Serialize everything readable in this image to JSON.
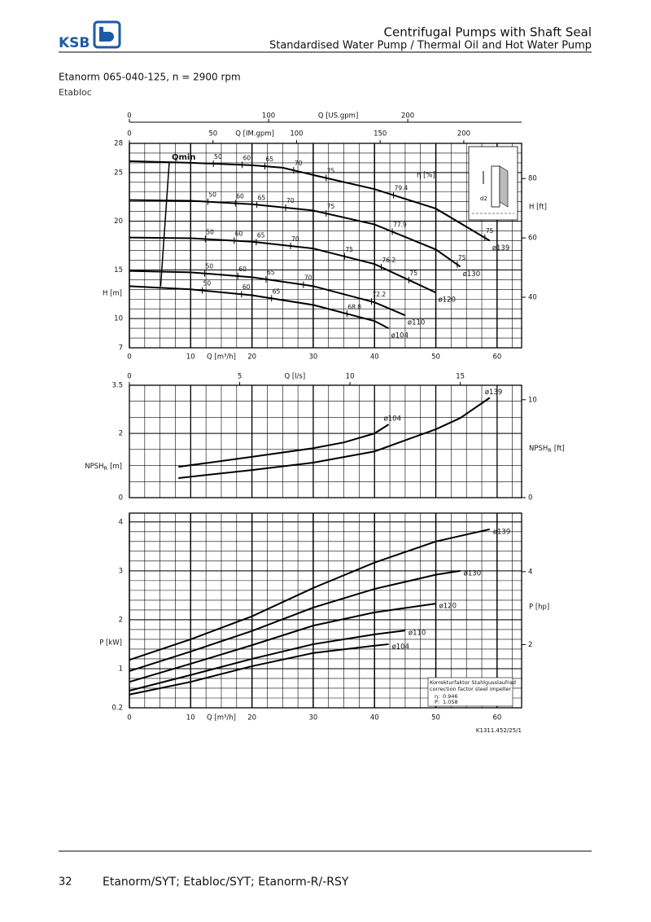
{
  "header": {
    "logo": "KSB",
    "title": "Centrifugal Pumps with Shaft Seal",
    "subtitle": "Standardised Water Pump / Thermal Oil and Hot Water Pump"
  },
  "product": {
    "name": "Etanorm 065-040-125, n = 2900 rpm",
    "variant": "Etabloc"
  },
  "chart_data": [
    {
      "type": "line",
      "xlim": [
        0,
        64
      ],
      "xticks": [
        0,
        10,
        20,
        30,
        40,
        50,
        60
      ],
      "x_label": "Q [m³/h]",
      "ylim": [
        7,
        28
      ],
      "yticks": [
        7,
        10,
        15,
        20,
        25,
        28
      ],
      "y_label": "H [m]",
      "y2lim": [
        22.97,
        91.86
      ],
      "y2ticks": [
        40,
        60,
        80
      ],
      "y2_label": "H [ft]",
      "top_axes": [
        {
          "label": "Q [US.gpm]",
          "lim": [
            0,
            281.8
          ],
          "ticks": [
            0,
            100,
            200
          ]
        },
        {
          "label": "Q [IM.gpm]",
          "lim": [
            0,
            234.6
          ],
          "ticks": [
            0,
            50,
            100,
            150,
            200
          ]
        }
      ],
      "efficiency_label": "η [%]",
      "qmin": {
        "label": "Qmin",
        "x": [
          6.5,
          5.1
        ],
        "values": [
          26,
          13.3
        ]
      },
      "inset_label": "d2",
      "series": [
        {
          "name": "ø139",
          "color": "#000000",
          "x": [
            0,
            10,
            20,
            25,
            30,
            40,
            50,
            58.8
          ],
          "values": [
            26.17,
            26.0,
            25.75,
            25.5,
            24.75,
            23.3,
            21.3,
            18.0
          ],
          "eta_points": [
            {
              "x": 13.7,
              "eta": 50
            },
            {
              "x": 18.4,
              "eta": 60
            },
            {
              "x": 22.1,
              "eta": 65
            },
            {
              "x": 26.8,
              "eta": 70
            },
            {
              "x": 32.1,
              "eta": 75
            },
            {
              "x": 43.1,
              "eta": 79.4
            },
            {
              "x": 58.0,
              "eta": 75
            }
          ]
        },
        {
          "name": "ø130",
          "color": "#000000",
          "x": [
            0,
            10,
            20,
            30,
            40,
            50,
            54
          ],
          "values": [
            22.17,
            22.1,
            21.75,
            21.1,
            19.67,
            17.1,
            15.33
          ],
          "eta_points": [
            {
              "x": 12.8,
              "eta": 50
            },
            {
              "x": 17.3,
              "eta": 60
            },
            {
              "x": 20.8,
              "eta": 65
            },
            {
              "x": 25.5,
              "eta": 70
            },
            {
              "x": 32.1,
              "eta": 75
            },
            {
              "x": 42.9,
              "eta": 77.9
            },
            {
              "x": 53.5,
              "eta": 75
            }
          ]
        },
        {
          "name": "ø120",
          "color": "#000000",
          "x": [
            0,
            10,
            20,
            30,
            40,
            50
          ],
          "values": [
            18.33,
            18.25,
            17.9,
            17.2,
            15.6,
            12.67
          ],
          "eta_points": [
            {
              "x": 12.4,
              "eta": 50
            },
            {
              "x": 17.1,
              "eta": 60
            },
            {
              "x": 20.7,
              "eta": 65
            },
            {
              "x": 26.3,
              "eta": 70
            },
            {
              "x": 35.1,
              "eta": 75
            },
            {
              "x": 41.1,
              "eta": 76.2
            },
            {
              "x": 45.6,
              "eta": 75
            }
          ]
        },
        {
          "name": "ø110",
          "color": "#000000",
          "x": [
            0,
            10,
            20,
            30,
            40,
            45
          ],
          "values": [
            14.9,
            14.75,
            14.25,
            13.33,
            11.67,
            10.33
          ],
          "eta_points": [
            {
              "x": 12.3,
              "eta": 50
            },
            {
              "x": 17.7,
              "eta": 60
            },
            {
              "x": 22.3,
              "eta": 65
            },
            {
              "x": 28.4,
              "eta": 70
            },
            {
              "x": 39.5,
              "eta": 72.2
            }
          ]
        },
        {
          "name": "ø104",
          "color": "#000000",
          "x": [
            0,
            10,
            20,
            30,
            40,
            42.3
          ],
          "values": [
            13.33,
            13.0,
            12.4,
            11.4,
            9.75,
            9.0
          ],
          "eta_points": [
            {
              "x": 11.9,
              "eta": 50
            },
            {
              "x": 18.3,
              "eta": 60
            },
            {
              "x": 23.2,
              "eta": 65
            },
            {
              "x": 35.5,
              "eta": 68.8
            }
          ]
        }
      ]
    },
    {
      "type": "line",
      "xlim": [
        0,
        64
      ],
      "ylim": [
        0,
        3.5
      ],
      "yticks": [
        0,
        2,
        3.5
      ],
      "y_label": {
        "text": "NPSH",
        "sub": "R",
        "unit": "[m]"
      },
      "y2lim": [
        0,
        11.48
      ],
      "y2ticks": [
        0,
        10
      ],
      "y2_label": {
        "text": "NPSH",
        "sub": "R",
        "unit": "[ft]"
      },
      "top_axes": [
        {
          "label": "Q [l/s]",
          "lim": [
            0,
            17.78
          ],
          "ticks": [
            0,
            5,
            10,
            15
          ]
        }
      ],
      "series": [
        {
          "name": "ø104",
          "color": "#000000",
          "x": [
            8,
            20,
            30,
            35,
            40,
            42.3
          ],
          "values": [
            0.96,
            1.27,
            1.54,
            1.72,
            2.0,
            2.28
          ]
        },
        {
          "name": "ø139",
          "color": "#000000",
          "x": [
            8,
            20,
            30,
            40,
            50,
            54,
            58.8
          ],
          "values": [
            0.61,
            0.86,
            1.09,
            1.44,
            2.13,
            2.48,
            3.11
          ]
        }
      ]
    },
    {
      "type": "line",
      "xlim": [
        0,
        64
      ],
      "xticks": [
        0,
        10,
        20,
        30,
        40,
        50,
        60
      ],
      "x_label": "Q [m³/h]",
      "ylim": [
        0.2,
        4.18
      ],
      "yticks": [
        0.2,
        1,
        2,
        3,
        4
      ],
      "y_label": "P [kW]",
      "y2lim": [
        0.268,
        5.605
      ],
      "y2ticks": [
        2,
        4
      ],
      "y2_label": "P [hp]",
      "note": {
        "title_de": "Korrekturfaktor Stahlgusslaufrad",
        "title_en": "correction factor steel impeller",
        "eta_symbol": "η:",
        "eta": 0.946,
        "p_symbol": "P:",
        "p": 1.058
      },
      "series": [
        {
          "name": "ø139",
          "color": "#000000",
          "x": [
            0,
            10,
            20,
            30,
            40,
            50,
            58.8
          ],
          "values": [
            1.18,
            1.6,
            2.07,
            2.65,
            3.17,
            3.6,
            3.85
          ]
        },
        {
          "name": "ø130",
          "color": "#000000",
          "x": [
            0,
            10,
            20,
            30,
            40,
            50,
            54
          ],
          "values": [
            0.95,
            1.35,
            1.77,
            2.25,
            2.63,
            2.92,
            3.0
          ]
        },
        {
          "name": "ø120",
          "color": "#000000",
          "x": [
            0,
            10,
            20,
            30,
            40,
            50
          ],
          "values": [
            0.73,
            1.1,
            1.48,
            1.88,
            2.15,
            2.33
          ]
        },
        {
          "name": "ø110",
          "color": "#000000",
          "x": [
            0,
            10,
            20,
            30,
            40,
            45
          ],
          "values": [
            0.55,
            0.87,
            1.2,
            1.5,
            1.7,
            1.78
          ]
        },
        {
          "name": "ø104",
          "color": "#000000",
          "x": [
            0,
            10,
            20,
            30,
            40,
            42.3
          ],
          "values": [
            0.47,
            0.73,
            1.05,
            1.32,
            1.47,
            1.5
          ]
        }
      ]
    }
  ],
  "figure_code": "K1311.452/25/1",
  "footer": {
    "page": 32,
    "text": "Etanorm/SYT; Etabloc/SYT; Etanorm-R/-RSY"
  }
}
